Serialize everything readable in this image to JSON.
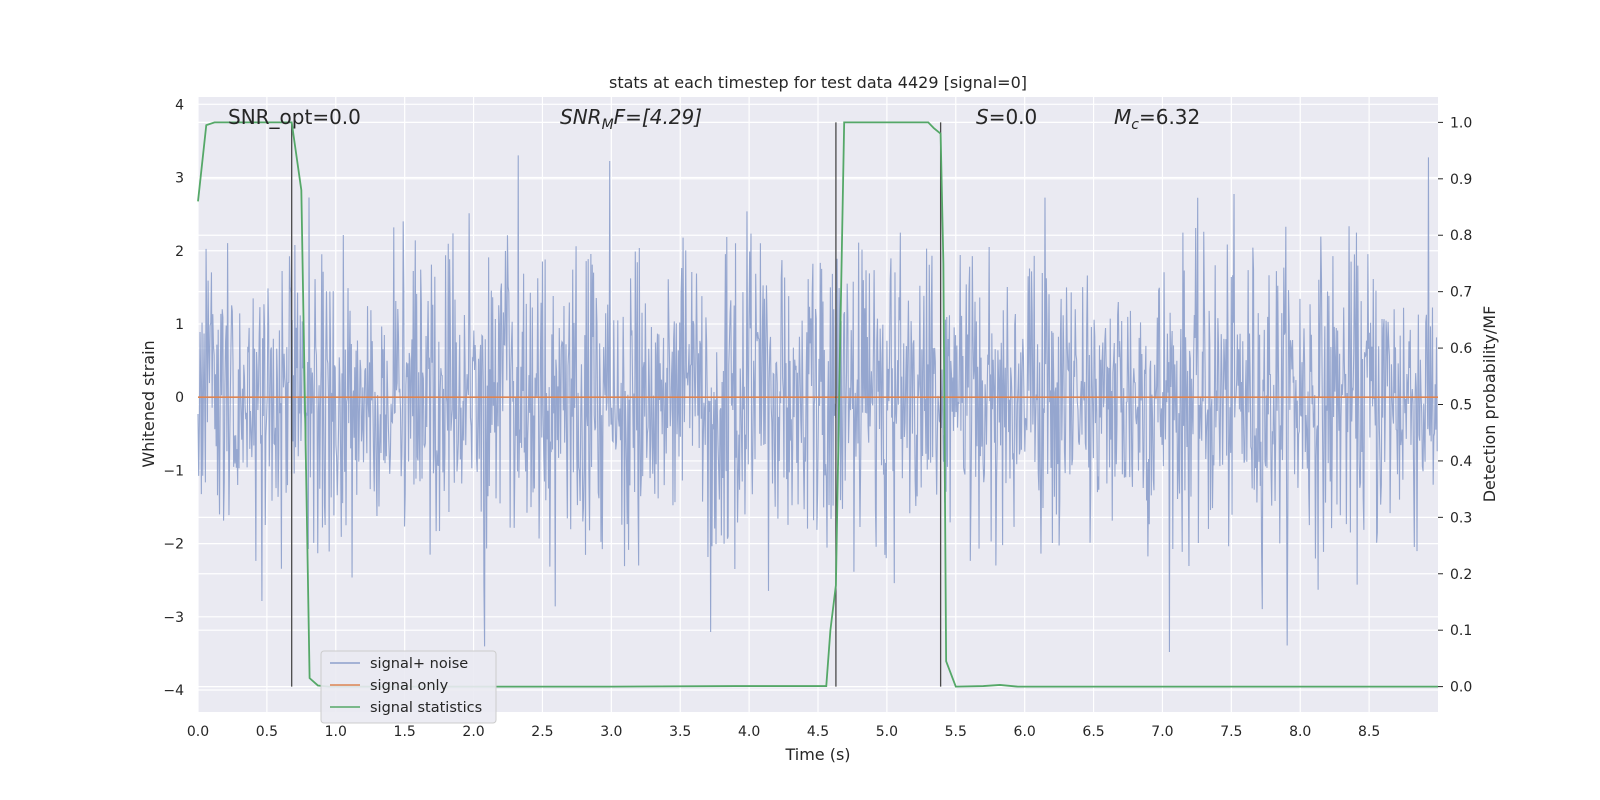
{
  "chart_data": {
    "type": "line",
    "title": "stats at each timestep for test data 4429 [signal=0]",
    "xlabel": "Time (s)",
    "ylabel": "Whitened strain",
    "y2label": "Detection probability/MF",
    "xlim": [
      0,
      9
    ],
    "ylim": [
      -4.3,
      4.1
    ],
    "y2lim": [
      -0.045,
      1.045
    ],
    "xticks": [
      "0.0",
      "0.5",
      "1.0",
      "1.5",
      "2.0",
      "2.5",
      "3.0",
      "3.5",
      "4.0",
      "4.5",
      "5.0",
      "5.5",
      "6.0",
      "6.5",
      "7.0",
      "7.5",
      "8.0",
      "8.5"
    ],
    "yticks": [
      "−4",
      "−3",
      "−2",
      "−1",
      "0",
      "1",
      "2",
      "3",
      "4"
    ],
    "y2ticks": [
      "0.0",
      "0.1",
      "0.2",
      "0.3",
      "0.4",
      "0.5",
      "0.6",
      "0.7",
      "0.8",
      "0.9",
      "1.0"
    ],
    "grid": true,
    "legend_position": "lower-left",
    "legend": [
      {
        "label": "signal+ noise",
        "color": "#8c9fcb"
      },
      {
        "label": "signal only",
        "color": "#dd8452"
      },
      {
        "label": "signal statistics",
        "color": "#55a868"
      }
    ],
    "annotations": {
      "snr_opt": "SNR_opt=0.0",
      "snr_mf_main": "SNR",
      "snr_mf_sub": "M",
      "snr_mf_tail": "F=[4.29]",
      "s_main": "S",
      "s_tail": "=0.0",
      "mc_main": "M",
      "mc_sub": "c",
      "mc_tail": "=6.32"
    },
    "series": [
      {
        "name": "signal+ noise",
        "axis": "left",
        "style": "noise band",
        "sample_rate_hz": 204.8,
        "duration_s": 9.0,
        "approx_range": [
          -3.8,
          3.6
        ],
        "std": 1.0
      },
      {
        "name": "signal only",
        "axis": "left",
        "x": [
          0,
          9
        ],
        "y": [
          0,
          0
        ]
      },
      {
        "name": "signal statistics",
        "axis": "right",
        "x": [
          0.0,
          0.06,
          0.12,
          0.3,
          0.5,
          0.62,
          0.68,
          0.75,
          0.81,
          0.87,
          0.95,
          1.0,
          2.0,
          3.0,
          3.9,
          4.0,
          4.56,
          4.59,
          4.63,
          4.66,
          4.69,
          4.74,
          5.0,
          5.3,
          5.34,
          5.39,
          5.41,
          5.43,
          5.5,
          5.7,
          5.82,
          5.95,
          6.5,
          7.0,
          8.0,
          9.0
        ],
        "y": [
          0.86,
          0.995,
          1.0,
          1.0,
          1.0,
          1.0,
          1.0,
          0.88,
          0.015,
          0.002,
          0.0,
          0.0,
          0.0,
          0.0,
          0.001,
          0.001,
          0.001,
          0.1,
          0.18,
          0.6,
          1.0,
          1.0,
          1.0,
          1.0,
          0.99,
          0.98,
          0.75,
          0.045,
          0.0,
          0.001,
          0.003,
          0.0,
          0.0,
          0.0,
          0.0,
          0.0
        ]
      }
    ],
    "vlines_x": [
      0.68,
      4.63,
      5.39
    ]
  }
}
